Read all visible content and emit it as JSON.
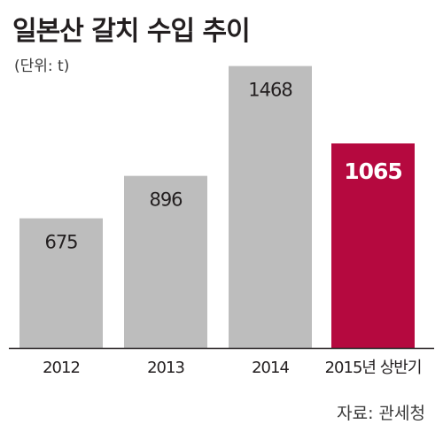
{
  "header": {
    "title": "일본산 갈치 수입 추이",
    "unit": "(단위: t)"
  },
  "footer": {
    "source": "자료: 관세청"
  },
  "colors": {
    "bar_default": "#bdbdbd",
    "bar_highlight": "#b5093f",
    "value_default": "#231f20",
    "value_highlight": "#ffffff",
    "baseline": "#231f20"
  },
  "chart_data": {
    "type": "bar",
    "title": "일본산 갈치 수입 추이",
    "ylabel": "(단위: t)",
    "xlabel": "",
    "categories": [
      "2012",
      "2013",
      "2014",
      "2015년 상반기"
    ],
    "values": [
      675,
      896,
      1468,
      1065
    ],
    "highlight_index": 3,
    "ylim": [
      0,
      1480
    ],
    "grid": false,
    "legend": "none"
  }
}
